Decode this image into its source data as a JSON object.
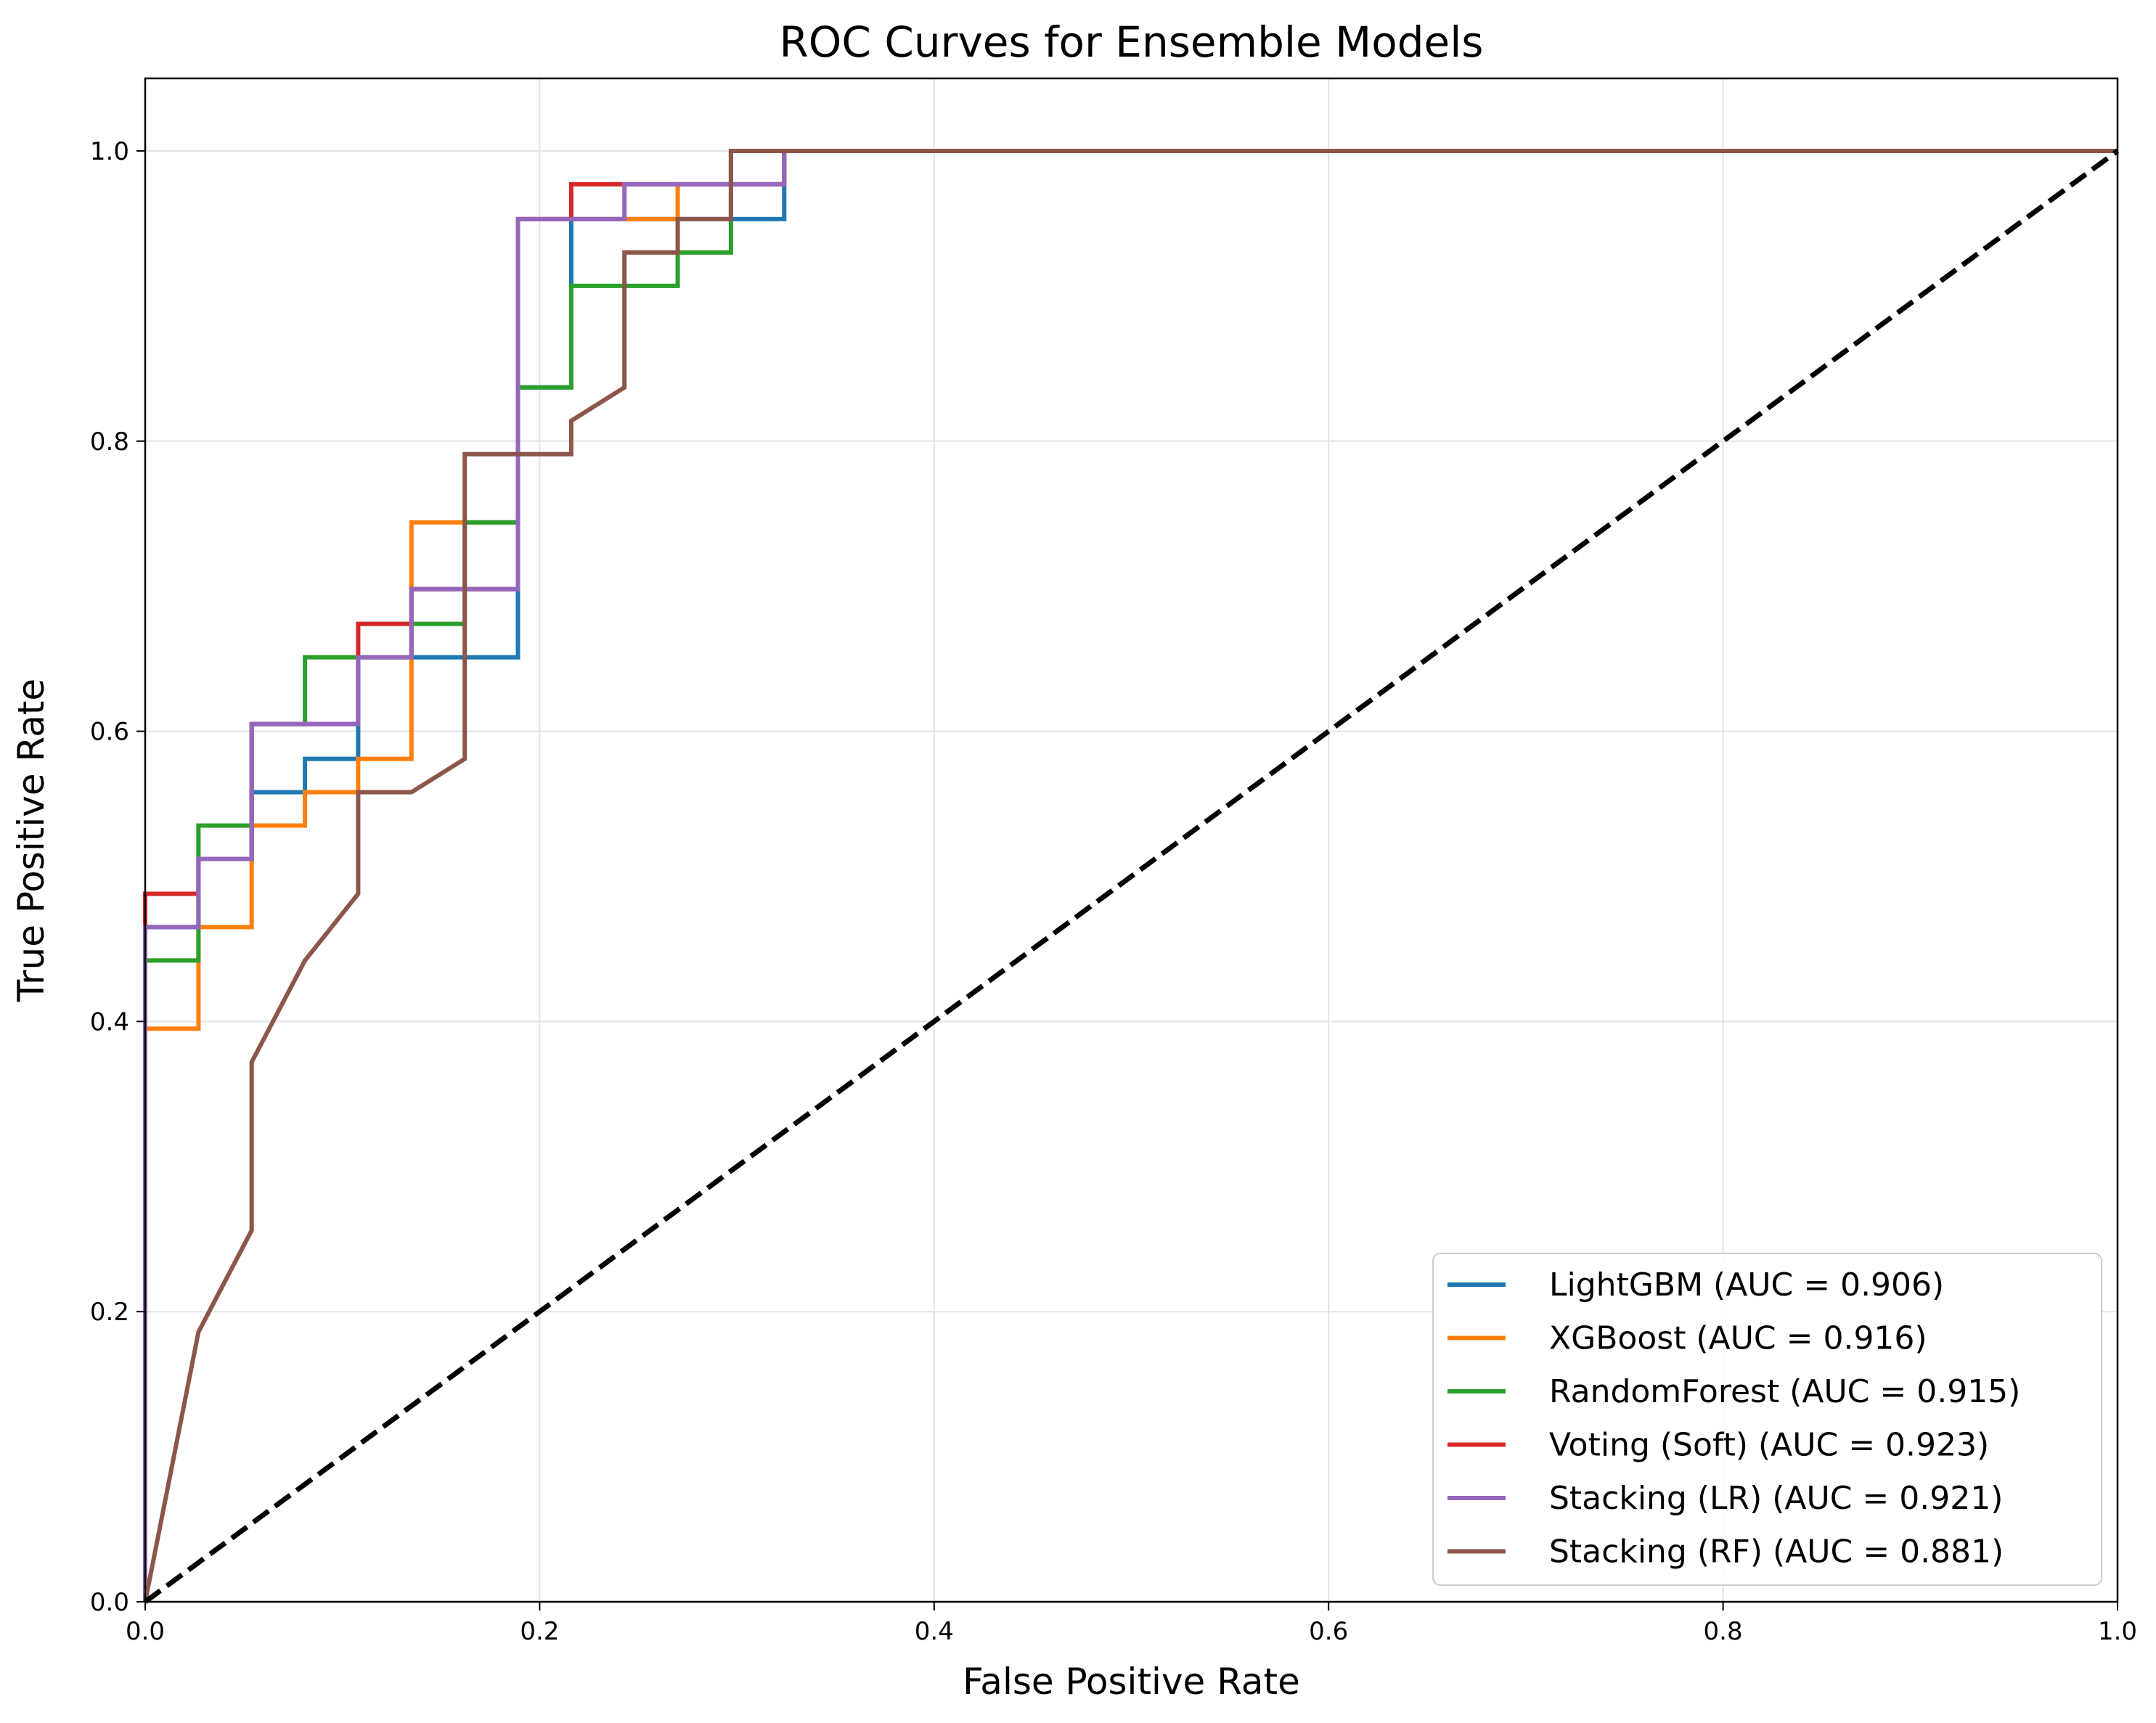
{
  "chart_data": {
    "type": "line",
    "title": "ROC Curves for Ensemble Models",
    "xlabel": "False Positive Rate",
    "ylabel": "True Positive Rate",
    "xlim": [
      0.0,
      1.0
    ],
    "ylim": [
      0.0,
      1.05
    ],
    "x_ticks": [
      "0.0",
      "0.2",
      "0.4",
      "0.6",
      "0.8",
      "1.0"
    ],
    "y_ticks": [
      "0.0",
      "0.2",
      "0.4",
      "0.6",
      "0.8",
      "1.0"
    ],
    "grid": true,
    "legend_position": "lower-right",
    "series": [
      {
        "name": "LightGBM (AUC = 0.906)",
        "color": "#1f77b4",
        "x": [
          0,
          0,
          0.027,
          0.027,
          0.054,
          0.054,
          0.081,
          0.081,
          0.108,
          0.108,
          0.135,
          0.135,
          0.162,
          0.162,
          0.189,
          0.189,
          0.216,
          0.216,
          0.243,
          0.243,
          0.27,
          0.27,
          0.297,
          0.297,
          0.324,
          0.324,
          1.0
        ],
        "y": [
          0,
          0.465,
          0.465,
          0.512,
          0.512,
          0.558,
          0.558,
          0.581,
          0.581,
          0.651,
          0.651,
          0.651,
          0.651,
          0.651,
          0.651,
          0.837,
          0.837,
          0.953,
          0.953,
          0.953,
          0.953,
          0.953,
          0.953,
          0.953,
          0.953,
          1.0,
          1.0
        ]
      },
      {
        "name": "XGBoost (AUC = 0.916)",
        "color": "#ff7f0e",
        "x": [
          0,
          0,
          0.027,
          0.027,
          0.054,
          0.054,
          0.081,
          0.081,
          0.108,
          0.108,
          0.135,
          0.135,
          0.162,
          0.162,
          0.189,
          0.189,
          0.216,
          0.216,
          0.243,
          0.243,
          0.27,
          0.27,
          0.297,
          0.297,
          0.324,
          0.324,
          1.0
        ],
        "y": [
          0,
          0.395,
          0.395,
          0.465,
          0.465,
          0.535,
          0.535,
          0.558,
          0.558,
          0.581,
          0.581,
          0.744,
          0.744,
          0.744,
          0.744,
          0.953,
          0.953,
          0.953,
          0.953,
          0.953,
          0.953,
          0.977,
          0.977,
          0.977,
          0.977,
          1.0,
          1.0
        ]
      },
      {
        "name": "RandomForest (AUC = 0.915)",
        "color": "#2ca02c",
        "x": [
          0,
          0,
          0.027,
          0.027,
          0.054,
          0.054,
          0.081,
          0.081,
          0.108,
          0.108,
          0.135,
          0.135,
          0.162,
          0.162,
          0.189,
          0.189,
          0.216,
          0.216,
          0.243,
          0.243,
          0.27,
          0.27,
          0.297,
          0.297,
          0.324,
          0.324,
          1.0
        ],
        "y": [
          0,
          0.442,
          0.442,
          0.535,
          0.535,
          0.605,
          0.605,
          0.651,
          0.651,
          0.651,
          0.651,
          0.674,
          0.674,
          0.744,
          0.744,
          0.837,
          0.837,
          0.907,
          0.907,
          0.907,
          0.907,
          0.93,
          0.93,
          1.0,
          1.0,
          1.0,
          1.0
        ]
      },
      {
        "name": "Voting (Soft) (AUC = 0.923)",
        "color": "#d62728",
        "x": [
          0,
          0,
          0.027,
          0.027,
          0.054,
          0.054,
          0.081,
          0.081,
          0.108,
          0.108,
          0.135,
          0.135,
          0.162,
          0.162,
          0.189,
          0.189,
          0.216,
          0.216,
          0.243,
          0.243,
          0.27,
          0.27,
          0.297,
          0.297,
          0.324,
          0.324,
          1.0
        ],
        "y": [
          0,
          0.488,
          0.488,
          0.512,
          0.512,
          0.605,
          0.605,
          0.605,
          0.605,
          0.674,
          0.674,
          0.698,
          0.698,
          0.698,
          0.698,
          0.953,
          0.953,
          0.977,
          0.977,
          0.977,
          0.977,
          0.977,
          0.977,
          0.977,
          0.977,
          1.0,
          1.0
        ]
      },
      {
        "name": "Stacking (LR) (AUC = 0.921)",
        "color": "#9467bd",
        "x": [
          0,
          0,
          0.027,
          0.027,
          0.054,
          0.054,
          0.081,
          0.081,
          0.108,
          0.108,
          0.135,
          0.135,
          0.162,
          0.162,
          0.189,
          0.189,
          0.216,
          0.216,
          0.243,
          0.243,
          0.27,
          0.27,
          0.297,
          0.297,
          0.324,
          0.324,
          1.0
        ],
        "y": [
          0,
          0.465,
          0.465,
          0.512,
          0.512,
          0.605,
          0.605,
          0.605,
          0.605,
          0.651,
          0.651,
          0.698,
          0.698,
          0.698,
          0.698,
          0.953,
          0.953,
          0.953,
          0.953,
          0.977,
          0.977,
          0.977,
          0.977,
          0.977,
          0.977,
          1.0,
          1.0
        ]
      },
      {
        "name": "Stacking (RF) (AUC = 0.881)",
        "color": "#8c564b",
        "x": [
          0,
          0.027,
          0.054,
          0.054,
          0.081,
          0.108,
          0.108,
          0.135,
          0.162,
          0.162,
          0.189,
          0.216,
          0.216,
          0.243,
          0.243,
          0.27,
          0.27,
          0.297,
          0.297,
          1.0
        ],
        "y": [
          0,
          0.186,
          0.256,
          0.372,
          0.442,
          0.488,
          0.558,
          0.558,
          0.581,
          0.791,
          0.791,
          0.791,
          0.814,
          0.837,
          0.93,
          0.93,
          0.953,
          0.953,
          1.0,
          1.0
        ]
      },
      {
        "name": "",
        "color": "#000000",
        "dashed": true,
        "x": [
          0,
          1
        ],
        "y": [
          0,
          1
        ]
      }
    ]
  }
}
